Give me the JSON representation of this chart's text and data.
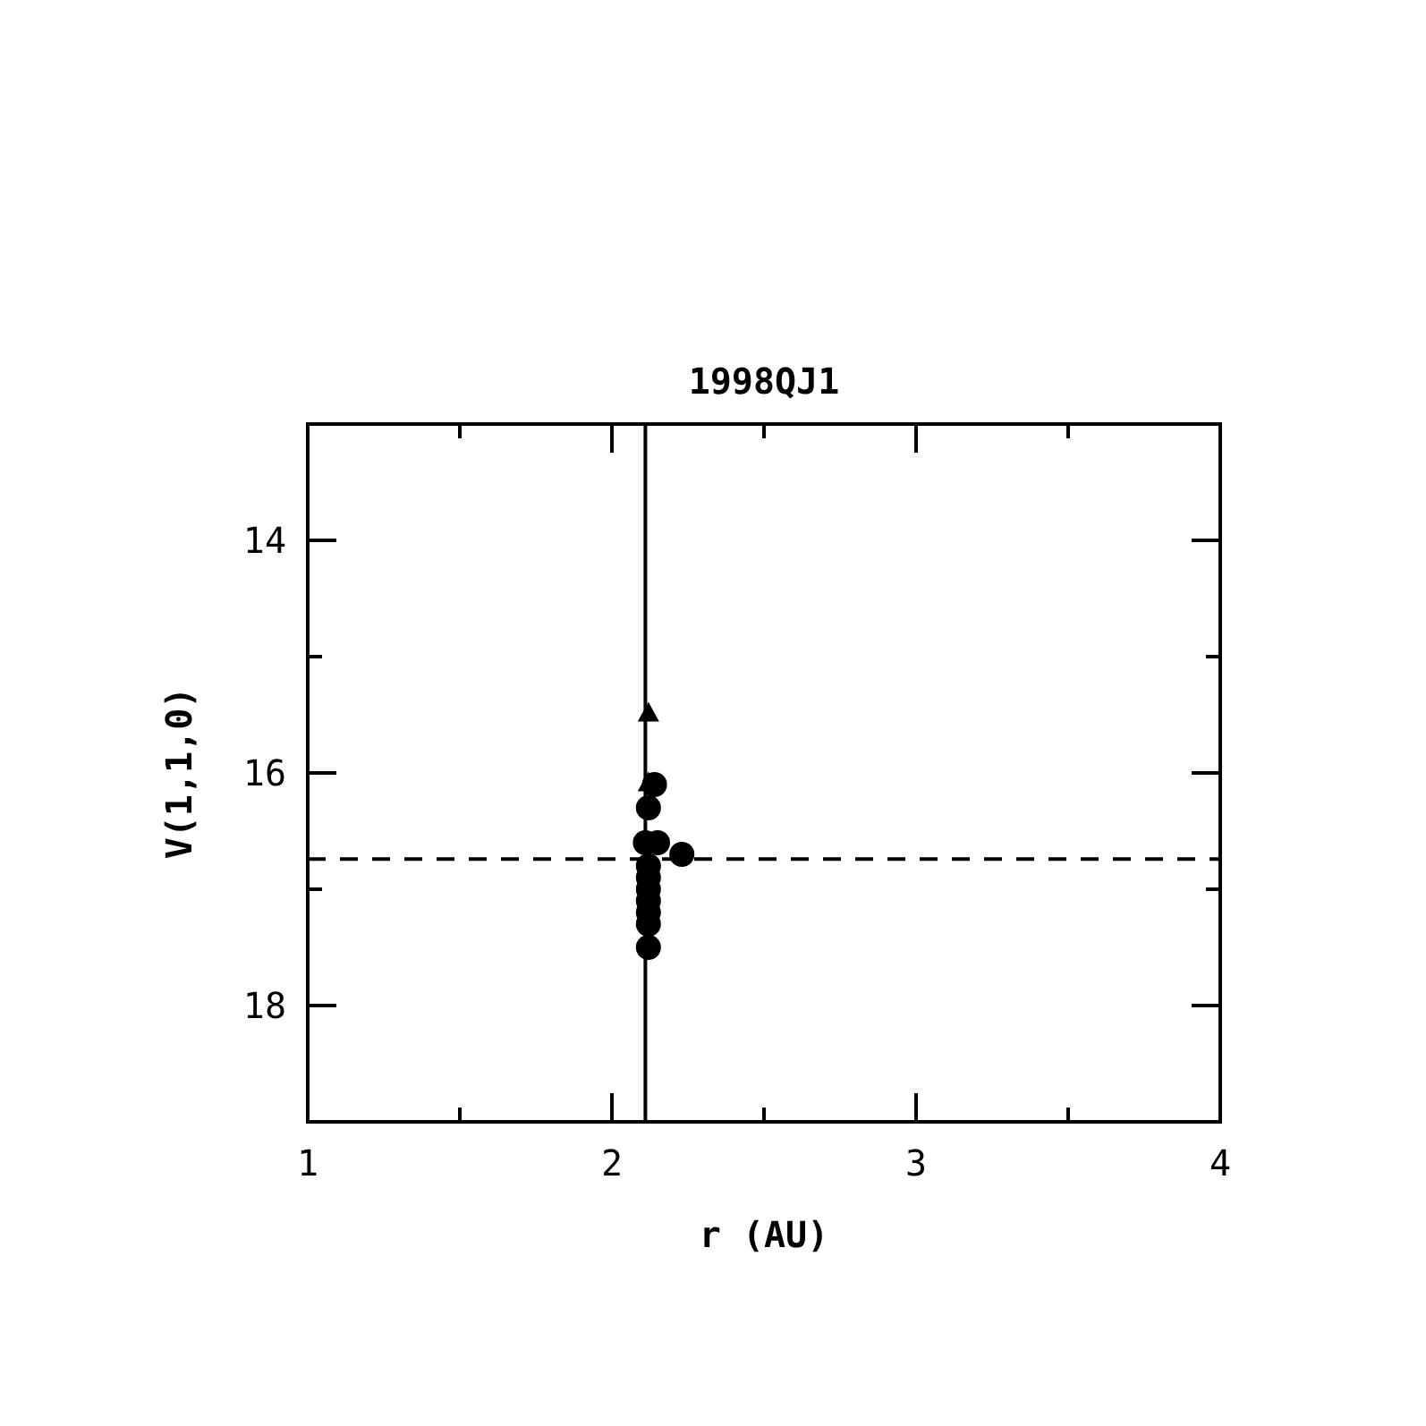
{
  "chart_data": {
    "type": "scatter",
    "title": "1998QJ1",
    "xlabel": "r (AU)",
    "ylabel": "V(1,1,0)",
    "xlim": [
      1,
      4
    ],
    "ylim": [
      19,
      13
    ],
    "xticks": [
      1,
      {
        "value": 1.5,
        "label": null
      },
      2,
      {
        "value": 2.5,
        "label": null
      },
      3,
      {
        "value": 3.5,
        "label": null
      },
      4
    ],
    "yticks": [
      {
        "value": 13,
        "label": null
      },
      14,
      {
        "value": 15,
        "label": null
      },
      16,
      {
        "value": 17,
        "label": null
      },
      18,
      {
        "value": 19,
        "label": null
      }
    ],
    "series": [
      {
        "color": "#000000",
        "marker": "circle",
        "x": [
          2.14,
          2.12,
          2.11,
          2.15,
          2.23,
          2.12,
          2.12,
          2.12,
          2.12,
          2.12,
          2.12,
          2.12
        ],
        "values": [
          16.1,
          16.3,
          16.6,
          16.6,
          16.7,
          16.8,
          16.9,
          17.0,
          17.1,
          17.2,
          17.3,
          17.5
        ]
      },
      {
        "color": "#000000",
        "marker": "triangle",
        "x": [
          2.12,
          2.12
        ],
        "values": [
          15.48,
          16.08
        ]
      }
    ],
    "ref_lines": [
      {
        "axis": "x",
        "value": 2.11,
        "line_style": "solid"
      },
      {
        "axis": "y",
        "value": 16.74,
        "line_style": "dashed"
      }
    ]
  }
}
